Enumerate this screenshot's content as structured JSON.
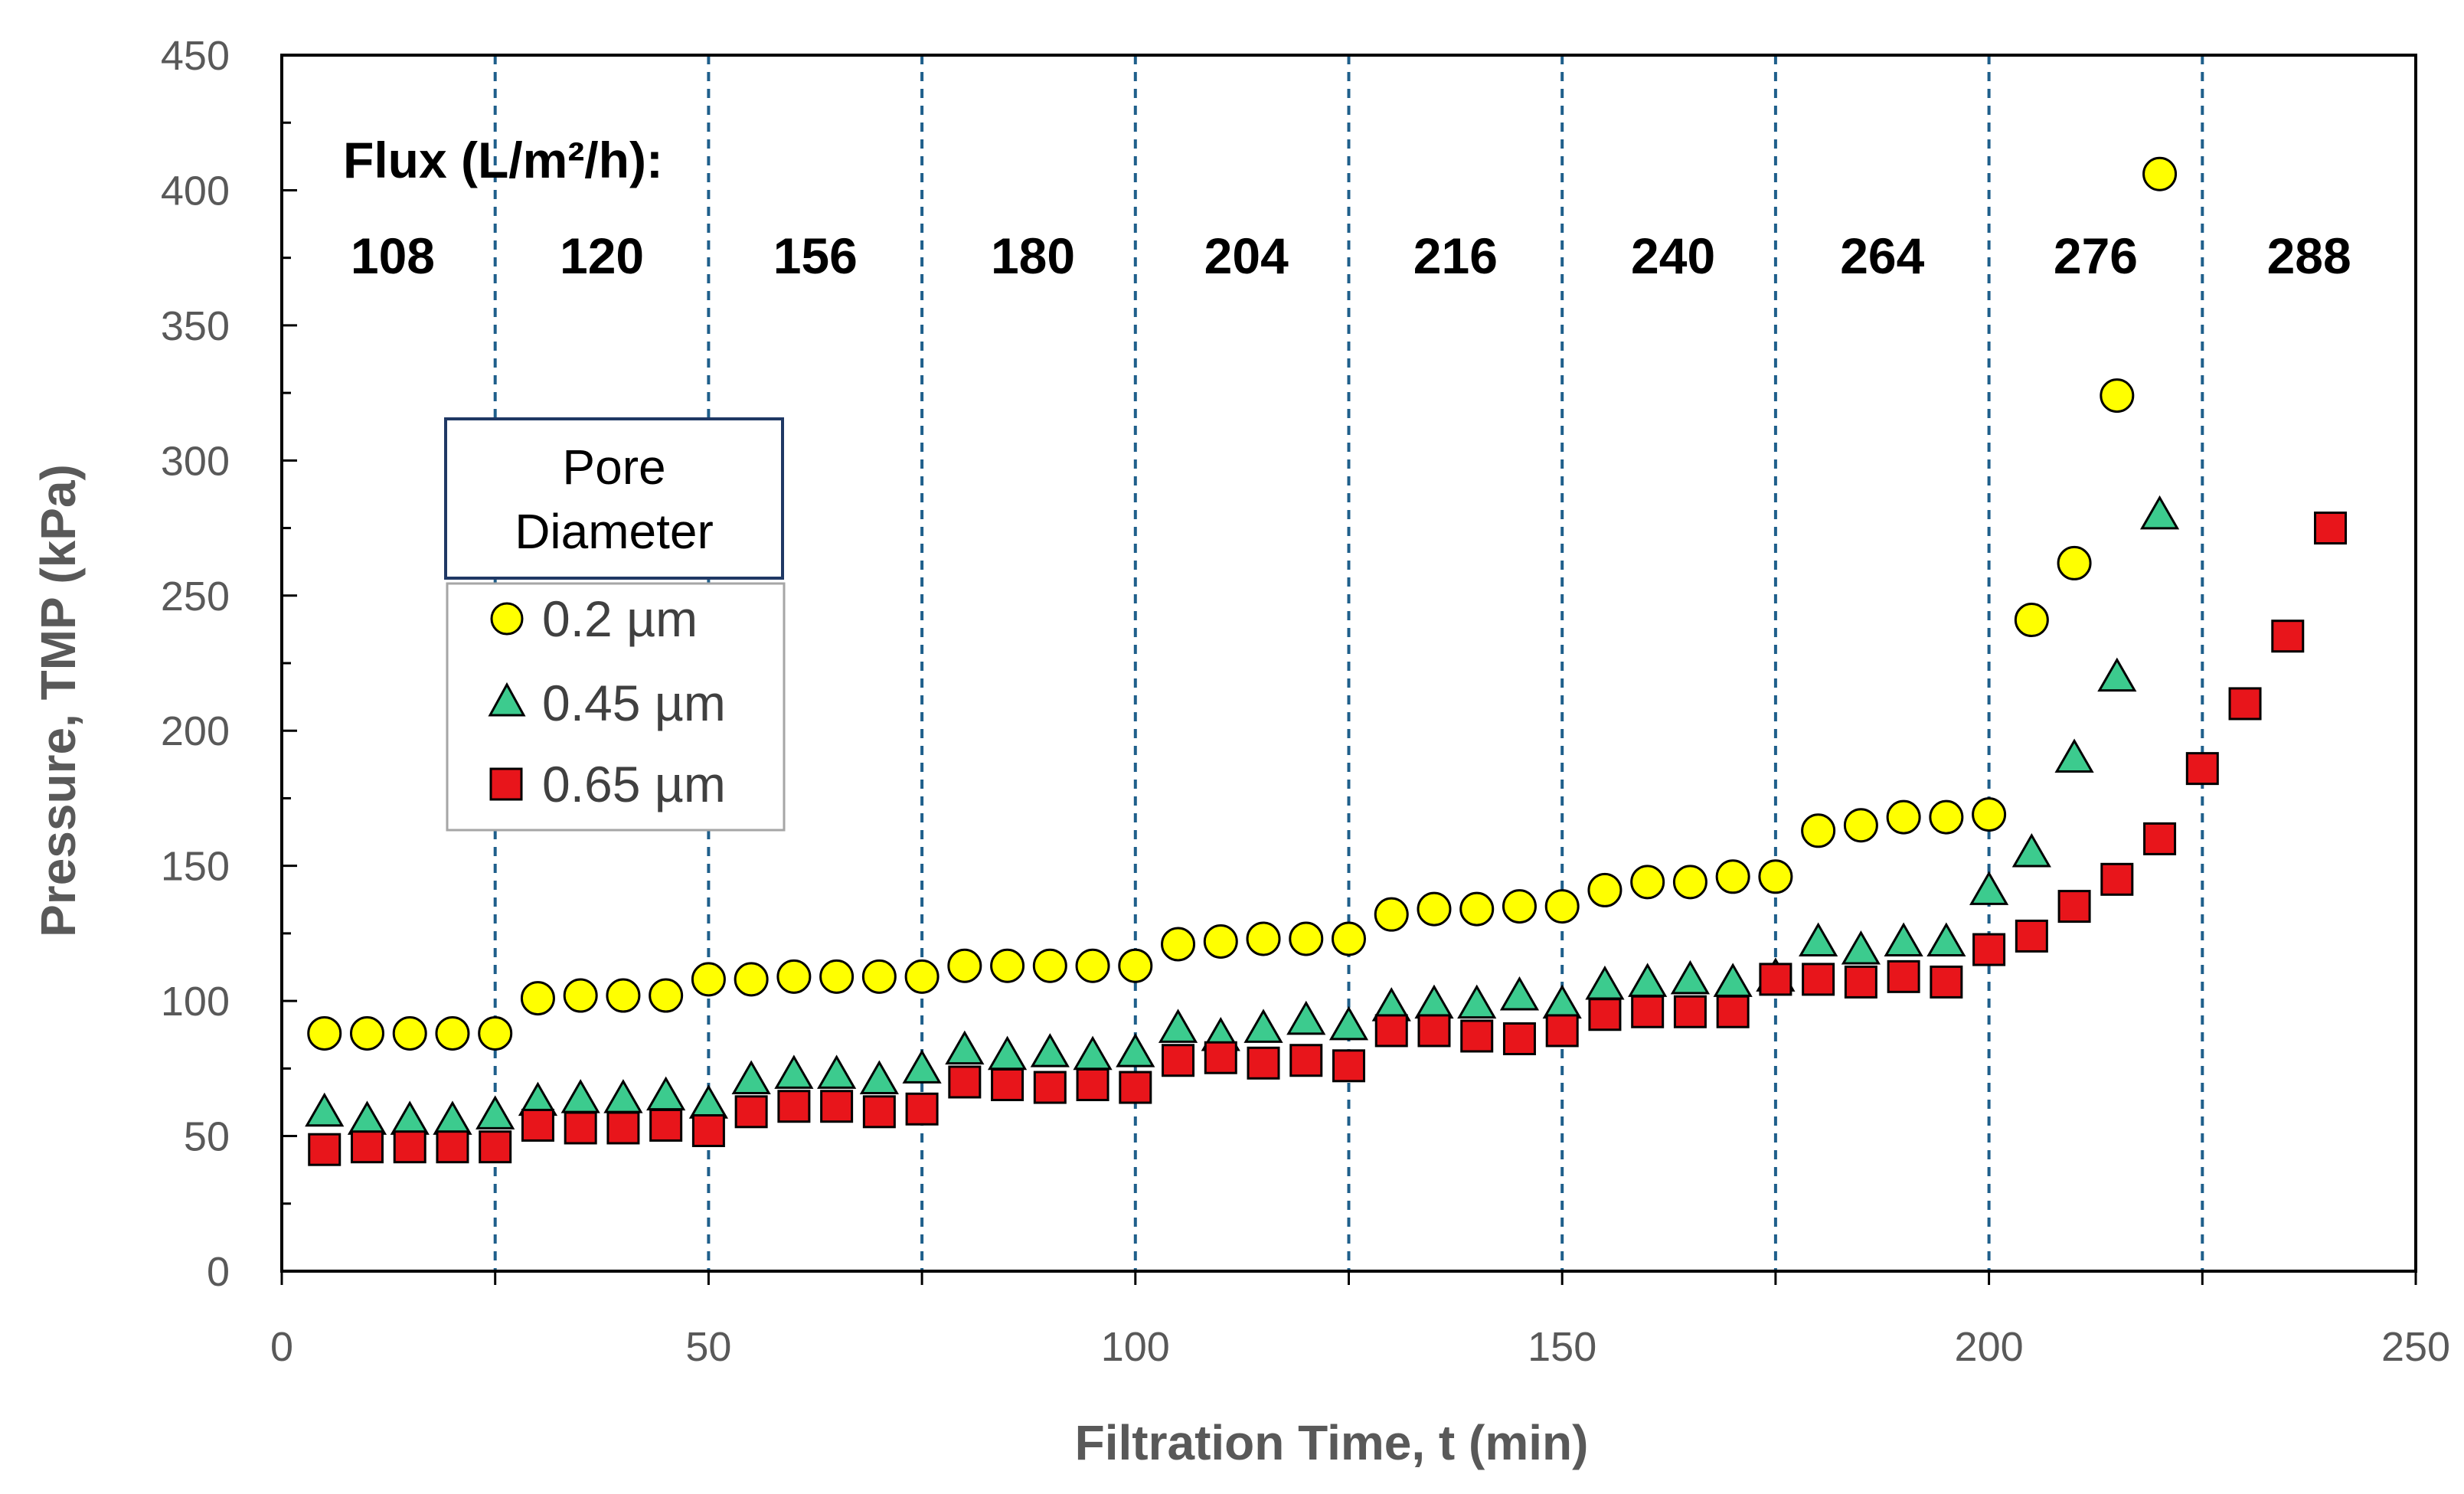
{
  "chart_data": {
    "type": "scatter",
    "title": "",
    "xlabel": "Filtration Time, t (min)",
    "ylabel": "Pressure, TMP (kPa)",
    "xlim": [
      0,
      250
    ],
    "ylim": [
      0,
      450
    ],
    "x_ticks": [
      0,
      50,
      100,
      150,
      200,
      250
    ],
    "y_ticks": [
      0,
      50,
      100,
      150,
      200,
      250,
      300,
      350,
      400,
      450
    ],
    "grid": false,
    "flux_header": "Flux (L/m²/h):",
    "flux_boundaries": [
      25,
      50,
      75,
      100,
      125,
      150,
      175,
      200,
      225
    ],
    "flux_values": [
      {
        "label": "108",
        "x": 13
      },
      {
        "label": "120",
        "x": 37.5
      },
      {
        "label": "156",
        "x": 62.5
      },
      {
        "label": "180",
        "x": 88
      },
      {
        "label": "204",
        "x": 113
      },
      {
        "label": "216",
        "x": 137.5
      },
      {
        "label": "240",
        "x": 163
      },
      {
        "label": "264",
        "x": 187.5
      },
      {
        "label": "276",
        "x": 212.5
      },
      {
        "label": "288",
        "x": 237.5
      }
    ],
    "legend": {
      "title_line1": "Pore",
      "title_line2": "Diameter",
      "position": "left-middle"
    },
    "series": [
      {
        "name": "0.2 µm",
        "marker": "circle",
        "color": "#FFFF00",
        "x": [
          5,
          10,
          15,
          20,
          25,
          30,
          35,
          40,
          45,
          50,
          55,
          60,
          65,
          70,
          75,
          80,
          85,
          90,
          95,
          100,
          105,
          110,
          115,
          120,
          125,
          130,
          135,
          140,
          145,
          150,
          155,
          160,
          165,
          170,
          175,
          180,
          185,
          190,
          195,
          200,
          205,
          210,
          215,
          220
        ],
        "y": [
          88,
          88,
          88,
          88,
          88,
          101,
          102,
          102,
          102,
          108,
          108,
          109,
          109,
          109,
          109,
          113,
          113,
          113,
          113,
          113,
          121,
          122,
          123,
          123,
          123,
          132,
          134,
          134,
          135,
          135,
          141,
          144,
          144,
          146,
          146,
          163,
          165,
          168,
          168,
          169,
          241,
          262,
          324,
          406
        ]
      },
      {
        "name": "0.45 µm",
        "marker": "triangle",
        "color": "#3CCB8E",
        "x": [
          5,
          10,
          15,
          20,
          25,
          30,
          35,
          40,
          45,
          50,
          55,
          60,
          65,
          70,
          75,
          80,
          85,
          90,
          95,
          100,
          105,
          110,
          115,
          120,
          125,
          130,
          135,
          140,
          145,
          150,
          155,
          160,
          165,
          170,
          175,
          180,
          185,
          190,
          195,
          200,
          205,
          210,
          215,
          220
        ],
        "y": [
          59,
          56,
          56,
          56,
          58,
          63,
          64,
          64,
          65,
          62,
          71,
          73,
          73,
          71,
          75,
          82,
          80,
          81,
          80,
          81,
          90,
          87,
          90,
          93,
          91,
          98,
          99,
          99,
          102,
          99,
          106,
          107,
          108,
          107,
          109,
          122,
          119,
          122,
          122,
          141,
          155,
          190,
          220,
          280
        ]
      },
      {
        "name": "0.65 µm",
        "marker": "square",
        "color": "#E8151B",
        "x": [
          5,
          10,
          15,
          20,
          25,
          30,
          35,
          40,
          45,
          50,
          55,
          60,
          65,
          70,
          75,
          80,
          85,
          90,
          95,
          100,
          105,
          110,
          115,
          120,
          125,
          130,
          135,
          140,
          145,
          150,
          155,
          160,
          165,
          170,
          175,
          180,
          185,
          190,
          195,
          200,
          205,
          210,
          215,
          220,
          225,
          230,
          235,
          240
        ],
        "y": [
          45,
          46,
          46,
          46,
          46,
          54,
          53,
          53,
          54,
          52,
          59,
          61,
          61,
          59,
          60,
          70,
          69,
          68,
          69,
          68,
          78,
          79,
          77,
          78,
          76,
          89,
          89,
          87,
          86,
          89,
          95,
          96,
          96,
          96,
          108,
          108,
          107,
          109,
          107,
          119,
          124,
          135,
          145,
          160,
          186,
          210,
          235,
          275
        ]
      }
    ]
  }
}
